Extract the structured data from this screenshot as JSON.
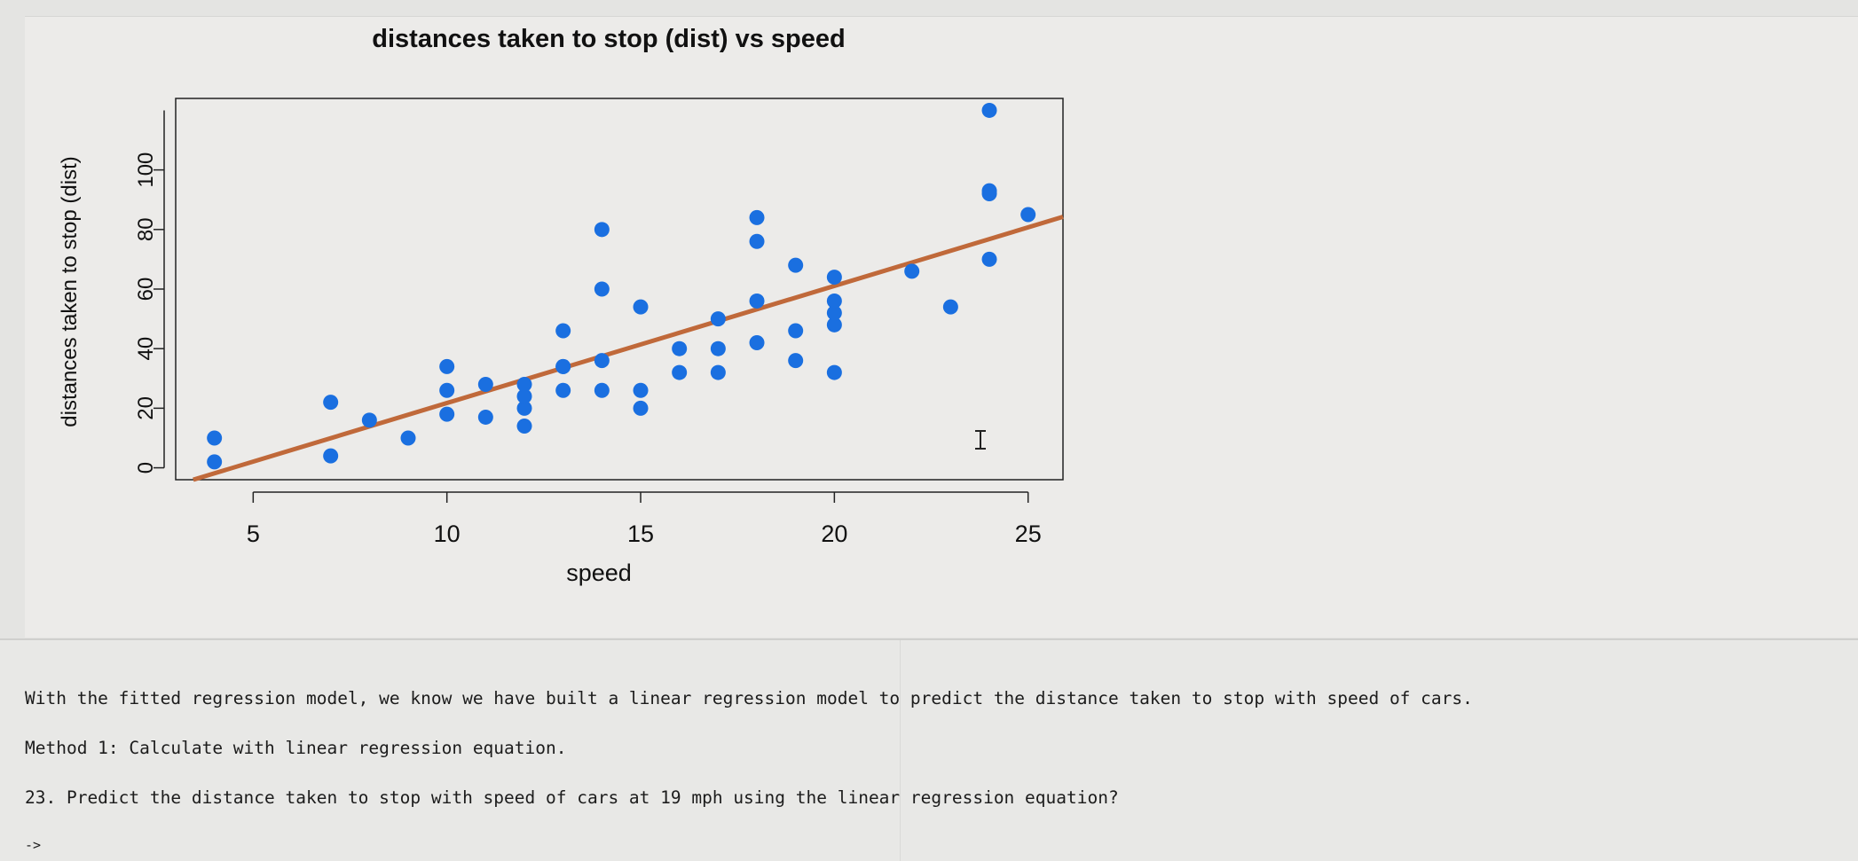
{
  "chart_data": {
    "type": "scatter",
    "title": "distances taken to stop (dist) vs speed",
    "xlabel": "speed",
    "ylabel": "distances taken to stop (dist)",
    "xlim": [
      3,
      25.9
    ],
    "ylim": [
      -4,
      124
    ],
    "xticks": [
      5,
      10,
      15,
      20,
      25
    ],
    "yticks": [
      0,
      20,
      40,
      60,
      80,
      100
    ],
    "grid": false,
    "point_color": "#1a6fe0",
    "line_color": "#c0693a",
    "points": [
      [
        4,
        2
      ],
      [
        4,
        10
      ],
      [
        7,
        4
      ],
      [
        7,
        22
      ],
      [
        8,
        16
      ],
      [
        9,
        10
      ],
      [
        10,
        18
      ],
      [
        10,
        26
      ],
      [
        10,
        34
      ],
      [
        11,
        17
      ],
      [
        11,
        28
      ],
      [
        12,
        14
      ],
      [
        12,
        20
      ],
      [
        12,
        24
      ],
      [
        12,
        28
      ],
      [
        13,
        26
      ],
      [
        13,
        34
      ],
      [
        13,
        34
      ],
      [
        13,
        46
      ],
      [
        14,
        26
      ],
      [
        14,
        36
      ],
      [
        14,
        60
      ],
      [
        14,
        80
      ],
      [
        15,
        20
      ],
      [
        15,
        26
      ],
      [
        15,
        54
      ],
      [
        16,
        32
      ],
      [
        16,
        40
      ],
      [
        17,
        32
      ],
      [
        17,
        40
      ],
      [
        17,
        50
      ],
      [
        18,
        42
      ],
      [
        18,
        56
      ],
      [
        18,
        76
      ],
      [
        18,
        84
      ],
      [
        19,
        36
      ],
      [
        19,
        46
      ],
      [
        19,
        68
      ],
      [
        20,
        32
      ],
      [
        20,
        48
      ],
      [
        20,
        52
      ],
      [
        20,
        56
      ],
      [
        20,
        64
      ],
      [
        22,
        66
      ],
      [
        23,
        54
      ],
      [
        24,
        70
      ],
      [
        24,
        92
      ],
      [
        24,
        93
      ],
      [
        24,
        120
      ],
      [
        25,
        85
      ]
    ],
    "regression": {
      "intercept": -17.579,
      "slope": 3.932
    }
  },
  "markdown": {
    "line1": "With the fitted regression model, we know we have built a linear regression model to predict the distance taken to stop with speed of cars.",
    "line2": "Method 1: Calculate with linear regression equation.",
    "line3": "23. Predict the distance taken to stop with speed of cars at 19 mph using the linear regression equation?",
    "prompt": "->"
  }
}
